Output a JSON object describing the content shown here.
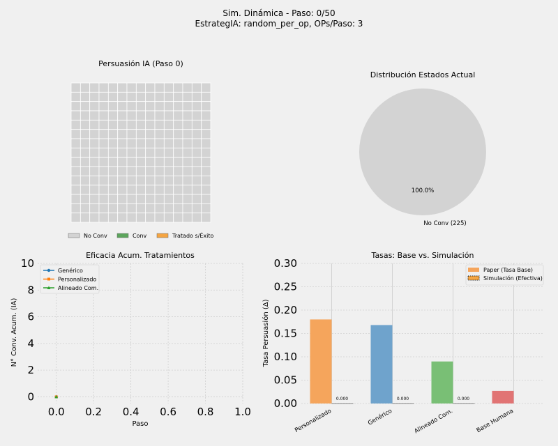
{
  "figure": {
    "title_line1": "Sim. Dinámica - Paso: 0/50",
    "title_line2": "EstrategIA: random_per_op, OPs/Paso: 3"
  },
  "chart_data": [
    {
      "type": "heatmap",
      "title": "Persuasión IA (Paso 0)",
      "rows": 15,
      "cols": 15,
      "cell_state": "No Conv",
      "legend": [
        {
          "label": "No Conv",
          "color": "#d3d3d3"
        },
        {
          "label": "Conv",
          "color": "#5ca55c"
        },
        {
          "label": "Tratado s/Éxito",
          "color": "#f5a542"
        }
      ],
      "legend_position": "bottom"
    },
    {
      "type": "pie",
      "title": "Distribución Estados Actual",
      "slices": [
        {
          "label": "No Conv (225)",
          "value": 225,
          "pct_label": "100.0%",
          "color": "#d3d3d3"
        }
      ]
    },
    {
      "type": "line",
      "title": "Eficacia Acum. Tratamientos",
      "xlabel": "Paso",
      "ylabel": "N° Conv. Acum. (IA)",
      "xlim": [
        -0.1,
        1.0
      ],
      "ylim": [
        -0.5,
        10
      ],
      "xticks": [
        "0.0",
        "0.2",
        "0.4",
        "0.6",
        "0.8",
        "1.0"
      ],
      "yticks": [
        "0",
        "2",
        "4",
        "6",
        "8",
        "10"
      ],
      "grid": true,
      "legend_position": "top-left",
      "series": [
        {
          "name": "Genérico",
          "color": "#1f77b4",
          "marker": "circle",
          "x": [
            0
          ],
          "y": [
            0
          ]
        },
        {
          "name": "Personalizado",
          "color": "#ff7f0e",
          "marker": "square",
          "x": [
            0
          ],
          "y": [
            0
          ]
        },
        {
          "name": "Alineado Com.",
          "color": "#2ca02c",
          "marker": "triangle",
          "x": [
            0
          ],
          "y": [
            0
          ]
        }
      ]
    },
    {
      "type": "bar",
      "title": "Tasas: Base vs. Simulación",
      "ylabel": "Tasa Persuasión (Δ)",
      "ylim": [
        0,
        0.3
      ],
      "yticks": [
        "0.00",
        "0.05",
        "0.10",
        "0.15",
        "0.20",
        "0.25",
        "0.30"
      ],
      "grid": true,
      "legend_position": "top-right",
      "categories": [
        "Personalizado",
        "Genérico",
        "Alineado Com.",
        "Base Humana"
      ],
      "series": [
        {
          "name": "Paper (Tasa Base)",
          "values": [
            0.18,
            0.168,
            0.09,
            0.027
          ],
          "colors": [
            "#f5a55c",
            "#6fa3cc",
            "#79bf75",
            "#e17474"
          ]
        },
        {
          "name": "Simulación (Efectiva)",
          "values": [
            0.0,
            0.0,
            0.0,
            null
          ],
          "labels": [
            "0.000",
            "0.000",
            "0.000",
            ""
          ]
        }
      ]
    }
  ]
}
